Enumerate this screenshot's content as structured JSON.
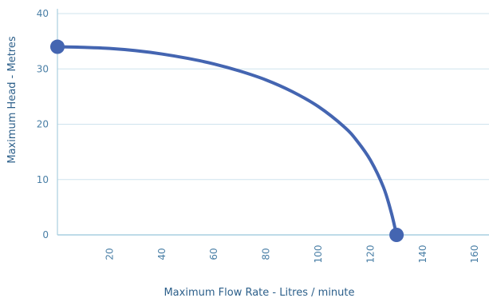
{
  "colors": {
    "curve": "#4465b1",
    "point": "#4465b1",
    "grid": "#cfe3ee",
    "axis": "#a9cfe0",
    "tick_text": "#4a7fa6",
    "axis_title": "#2c5f8a"
  },
  "chart_data": {
    "type": "line",
    "title": "",
    "xlabel": "Maximum Flow Rate - Litres / minute",
    "ylabel": "Maximum Head - Metres",
    "xlim": [
      0,
      165
    ],
    "ylim": [
      0,
      40
    ],
    "x_ticks": [
      20,
      40,
      60,
      80,
      100,
      120,
      140,
      160
    ],
    "y_ticks": [
      0,
      10,
      20,
      30,
      40
    ],
    "grid": "horizontal",
    "series": [
      {
        "x": [
          0,
          10,
          20,
          30,
          40,
          50,
          60,
          70,
          80,
          90,
          100,
          110,
          115,
          120,
          125,
          128,
          130
        ],
        "y": [
          34,
          33.9,
          33.7,
          33.3,
          32.7,
          31.9,
          30.9,
          29.6,
          28.0,
          25.9,
          23.2,
          19.5,
          16.9,
          13.5,
          8.6,
          4.0,
          0
        ],
        "markers": [
          {
            "x": 0,
            "y": 34
          },
          {
            "x": 130,
            "y": 0
          }
        ]
      }
    ]
  }
}
